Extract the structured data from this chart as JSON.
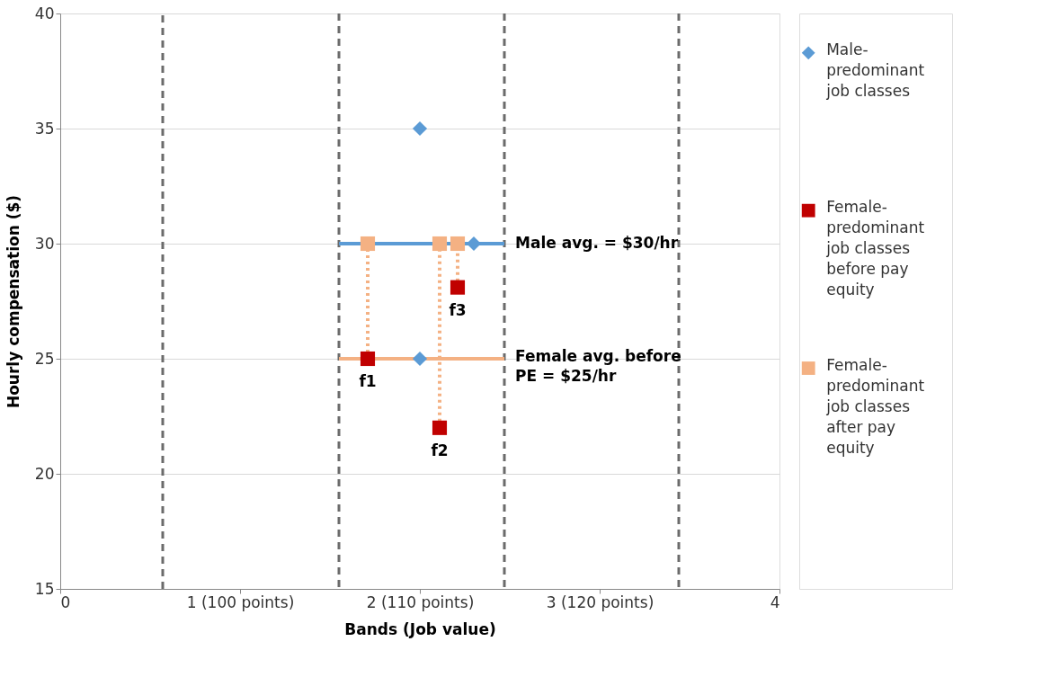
{
  "chart_data": {
    "type": "scatter",
    "xlabel": "Bands (Job value)",
    "ylabel": "Hourly compensation ($)",
    "xlim": [
      0,
      4
    ],
    "ylim": [
      15,
      40
    ],
    "xticks": [
      0,
      {
        "value": 1,
        "label": "1 (100 points)"
      },
      {
        "value": 2,
        "label": "2 (110 points)"
      },
      {
        "value": 3,
        "label": "3 (120 points)"
      },
      4
    ],
    "yticks": [
      15,
      20,
      25,
      30,
      35,
      40
    ],
    "grid": "y",
    "legend": "top right",
    "ref_lines": [
      {
        "axis": "x",
        "value": 0.57,
        "color": "#6b6b6b",
        "line_style": "dashed"
      },
      {
        "axis": "x",
        "value": 1.55,
        "color": "#6b6b6b",
        "line_style": "dashed"
      },
      {
        "axis": "x",
        "value": 2.47,
        "color": "#6b6b6b",
        "line_style": "dashed"
      },
      {
        "axis": "x",
        "value": 3.44,
        "color": "#6b6b6b",
        "line_style": "dashed"
      }
    ],
    "series": [
      {
        "type": "line",
        "color": "#5b9bd5",
        "line_style": "solid",
        "x": [
          1.55,
          2.47
        ],
        "values": [
          30,
          30
        ]
      },
      {
        "type": "line",
        "color": "#f4b183",
        "line_style": "solid",
        "x": [
          1.55,
          2.47
        ],
        "values": [
          25,
          25
        ]
      },
      {
        "type": "line",
        "color": "#f4b183",
        "line_style": "dotted",
        "x": [
          1.71,
          1.71
        ],
        "values": [
          25,
          30
        ]
      },
      {
        "type": "line",
        "color": "#f4b183",
        "line_style": "dotted",
        "x": [
          2.11,
          2.11
        ],
        "values": [
          22,
          30
        ]
      },
      {
        "type": "line",
        "color": "#f4b183",
        "line_style": "dotted",
        "x": [
          2.21,
          2.21
        ],
        "values": [
          28.1,
          30
        ]
      },
      {
        "name": "Male-predominant job classes",
        "color": "#5b9bd5",
        "marker": "diamond",
        "x": [
          2.0,
          2.3,
          2.0
        ],
        "values": [
          35,
          30,
          25
        ]
      },
      {
        "name": "Female-predominant job classes before pay equity",
        "color": "#c00000",
        "marker": "square",
        "x": [
          1.71,
          2.11,
          2.21
        ],
        "values": [
          25,
          22,
          28.1
        ]
      },
      {
        "name": "Female-predominant job classes after pay equity",
        "color": "#f4b183",
        "marker": "square",
        "x": [
          1.71,
          2.11,
          2.21
        ],
        "values": [
          30,
          30,
          30
        ]
      }
    ],
    "annotations": [
      {
        "text": "Male avg. = $30/hr",
        "x": 2.47,
        "y": 30
      },
      {
        "text": "Female avg. before PE = $25/hr",
        "x": 2.47,
        "y": 25
      },
      {
        "text": "f1",
        "x": 1.71,
        "y": 25
      },
      {
        "text": "f2",
        "x": 2.11,
        "y": 22
      },
      {
        "text": "f3",
        "x": 2.21,
        "y": 28.1
      }
    ]
  }
}
